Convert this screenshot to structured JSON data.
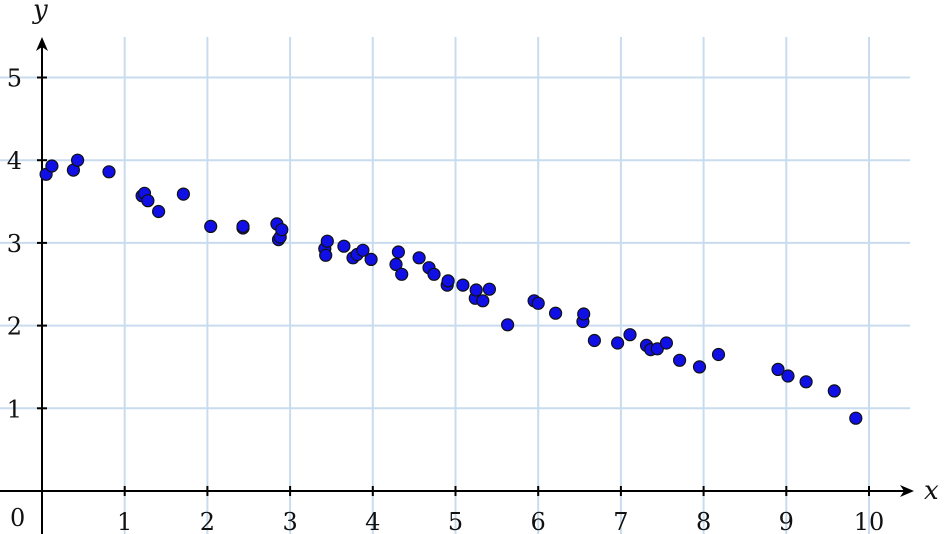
{
  "chart_data": {
    "type": "scatter",
    "title": "",
    "xlabel": "x",
    "ylabel": "y",
    "origin_label": "0",
    "xlim": [
      0,
      10.5
    ],
    "ylim": [
      0,
      5.5
    ],
    "x_ticks": [
      1,
      2,
      3,
      4,
      5,
      6,
      7,
      8,
      9,
      10
    ],
    "y_ticks": [
      1,
      2,
      3,
      4,
      5
    ],
    "x_tick_labels": [
      "1",
      "2",
      "3",
      "4",
      "5",
      "6",
      "7",
      "8",
      "9",
      "10"
    ],
    "y_tick_labels": [
      "1",
      "2",
      "3",
      "4",
      "5"
    ],
    "grid": true,
    "colors": {
      "point_fill": "#1010e6",
      "point_stroke": "#111111",
      "grid": "#c9dcef",
      "axis": "#000000"
    },
    "series": [
      {
        "points": [
          [
            0.05,
            3.83
          ],
          [
            0.12,
            3.93
          ],
          [
            0.38,
            3.88
          ],
          [
            0.43,
            4.0
          ],
          [
            0.81,
            3.86
          ],
          [
            1.21,
            3.57
          ],
          [
            1.24,
            3.6
          ],
          [
            1.28,
            3.51
          ],
          [
            1.41,
            3.38
          ],
          [
            1.71,
            3.59
          ],
          [
            2.04,
            3.2
          ],
          [
            2.43,
            3.18
          ],
          [
            2.43,
            3.2
          ],
          [
            2.84,
            3.23
          ],
          [
            2.86,
            3.04
          ],
          [
            2.88,
            3.07
          ],
          [
            2.9,
            3.16
          ],
          [
            3.42,
            2.93
          ],
          [
            3.43,
            2.85
          ],
          [
            3.45,
            3.02
          ],
          [
            3.65,
            2.96
          ],
          [
            3.76,
            2.82
          ],
          [
            3.81,
            2.86
          ],
          [
            3.88,
            2.91
          ],
          [
            3.98,
            2.8
          ],
          [
            4.28,
            2.74
          ],
          [
            4.31,
            2.89
          ],
          [
            4.35,
            2.62
          ],
          [
            4.56,
            2.82
          ],
          [
            4.68,
            2.7
          ],
          [
            4.74,
            2.62
          ],
          [
            4.9,
            2.49
          ],
          [
            4.91,
            2.54
          ],
          [
            5.09,
            2.49
          ],
          [
            5.24,
            2.33
          ],
          [
            5.25,
            2.43
          ],
          [
            5.33,
            2.3
          ],
          [
            5.41,
            2.44
          ],
          [
            5.63,
            2.01
          ],
          [
            5.95,
            2.3
          ],
          [
            6.0,
            2.27
          ],
          [
            6.21,
            2.15
          ],
          [
            6.54,
            2.05
          ],
          [
            6.55,
            2.14
          ],
          [
            6.68,
            1.82
          ],
          [
            6.96,
            1.79
          ],
          [
            7.11,
            1.89
          ],
          [
            7.31,
            1.76
          ],
          [
            7.36,
            1.71
          ],
          [
            7.44,
            1.72
          ],
          [
            7.55,
            1.79
          ],
          [
            7.71,
            1.58
          ],
          [
            7.95,
            1.5
          ],
          [
            8.18,
            1.65
          ],
          [
            8.9,
            1.47
          ],
          [
            9.02,
            1.39
          ],
          [
            9.24,
            1.32
          ],
          [
            9.58,
            1.21
          ],
          [
            9.84,
            0.88
          ]
        ]
      }
    ]
  }
}
